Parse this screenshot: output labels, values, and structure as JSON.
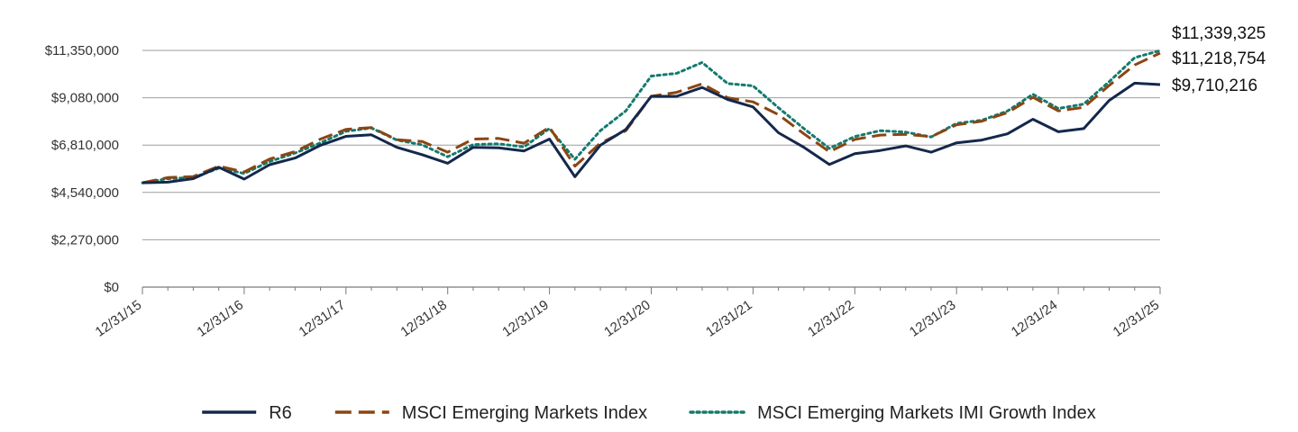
{
  "chart_data": {
    "type": "line",
    "title": "",
    "xlabel": "",
    "ylabel": "",
    "ylim": [
      0,
      11350000
    ],
    "y_ticks": [
      0,
      2270000,
      4540000,
      6810000,
      9080000,
      11350000
    ],
    "y_tick_labels": [
      "$0",
      "$2,270,000",
      "$4,540,000",
      "$6,810,000",
      "$9,080,000",
      "$11,350,000"
    ],
    "x_tick_labels": [
      "12/31/15",
      "12/31/16",
      "12/31/17",
      "12/31/18",
      "12/31/19",
      "12/31/20",
      "12/31/21",
      "12/31/22",
      "12/31/23",
      "12/31/24",
      "12/31/25"
    ],
    "x_tick_positions": [
      0,
      4,
      8,
      12,
      16,
      20,
      24,
      28,
      32,
      36,
      40
    ],
    "grid": true,
    "legend_position": "bottom",
    "series": [
      {
        "name": "R6",
        "color": "#14284b",
        "style": "solid",
        "end_label": "$9,710,216",
        "values": [
          5000000,
          5030000,
          5200000,
          5750000,
          5180000,
          5870000,
          6190000,
          6800000,
          7230000,
          7300000,
          6700000,
          6350000,
          5940000,
          6700000,
          6680000,
          6530000,
          7100000,
          5290000,
          6800000,
          7560000,
          9150000,
          9150000,
          9570000,
          9000000,
          8640000,
          7400000,
          6700000,
          5880000,
          6400000,
          6550000,
          6770000,
          6470000,
          6920000,
          7050000,
          7350000,
          8050000,
          7450000,
          7600000,
          8950000,
          9780000,
          9710216
        ]
      },
      {
        "name": "MSCI Emerging Markets Index",
        "color": "#8b4513",
        "style": "dashed",
        "end_label": "$11,218,754",
        "values": [
          5000000,
          5250000,
          5300000,
          5800000,
          5520000,
          6140000,
          6500000,
          7100000,
          7560000,
          7650000,
          7070000,
          6980000,
          6470000,
          7100000,
          7130000,
          6900000,
          7670000,
          5800000,
          6900000,
          7500000,
          9150000,
          9340000,
          9750000,
          9080000,
          8880000,
          8270000,
          7350000,
          6490000,
          7080000,
          7290000,
          7330000,
          7210000,
          7780000,
          7960000,
          8370000,
          9100000,
          8450000,
          8620000,
          9670000,
          10650000,
          11218754
        ]
      },
      {
        "name": "MSCI Emerging Markets IMI Growth Index",
        "color": "#137a6e",
        "style": "dotted",
        "end_label": "$11,339,325",
        "values": [
          5000000,
          5200000,
          5250000,
          5700000,
          5450000,
          6020000,
          6430000,
          6920000,
          7470000,
          7630000,
          7050000,
          6820000,
          6250000,
          6830000,
          6870000,
          6720000,
          7610000,
          6130000,
          7500000,
          8450000,
          10120000,
          10250000,
          10770000,
          9760000,
          9650000,
          8600000,
          7600000,
          6650000,
          7220000,
          7500000,
          7430000,
          7200000,
          7850000,
          8000000,
          8440000,
          9250000,
          8560000,
          8780000,
          9850000,
          11000000,
          11339325
        ]
      }
    ]
  }
}
